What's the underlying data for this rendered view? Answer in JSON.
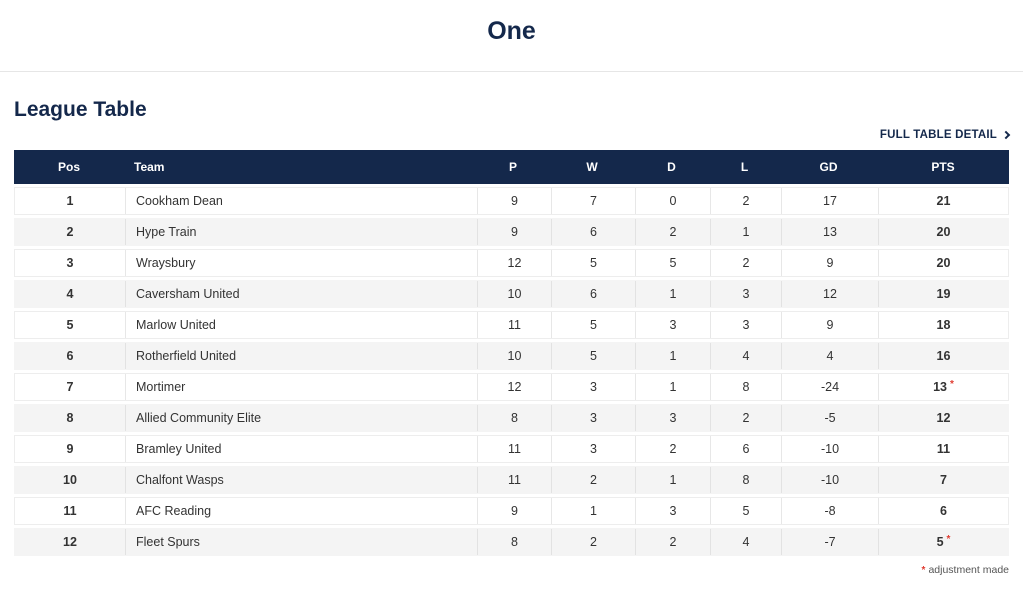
{
  "page": {
    "title": "One"
  },
  "section": {
    "heading": "League Table",
    "detail_link_label": "FULL TABLE DETAIL",
    "footnote_symbol": "*",
    "footnote_text": "adjustment made"
  },
  "colors": {
    "navy": "#14284b",
    "row_alt_bg": "#f4f4f4",
    "divider": "#e7e7e7",
    "text": "#333333",
    "adjustment_red": "#e03c31"
  },
  "table": {
    "columns": [
      {
        "key": "pos",
        "label": "Pos"
      },
      {
        "key": "team",
        "label": "Team"
      },
      {
        "key": "p",
        "label": "P"
      },
      {
        "key": "w",
        "label": "W"
      },
      {
        "key": "d",
        "label": "D"
      },
      {
        "key": "l",
        "label": "L"
      },
      {
        "key": "gd",
        "label": "GD"
      },
      {
        "key": "pts",
        "label": "PTS"
      }
    ],
    "rows": [
      {
        "pos": "1",
        "team": "Cookham Dean",
        "p": "9",
        "w": "7",
        "d": "0",
        "l": "2",
        "gd": "17",
        "pts": "21",
        "adjusted": false
      },
      {
        "pos": "2",
        "team": "Hype Train",
        "p": "9",
        "w": "6",
        "d": "2",
        "l": "1",
        "gd": "13",
        "pts": "20",
        "adjusted": false
      },
      {
        "pos": "3",
        "team": "Wraysbury",
        "p": "12",
        "w": "5",
        "d": "5",
        "l": "2",
        "gd": "9",
        "pts": "20",
        "adjusted": false
      },
      {
        "pos": "4",
        "team": "Caversham United",
        "p": "10",
        "w": "6",
        "d": "1",
        "l": "3",
        "gd": "12",
        "pts": "19",
        "adjusted": false
      },
      {
        "pos": "5",
        "team": "Marlow United",
        "p": "11",
        "w": "5",
        "d": "3",
        "l": "3",
        "gd": "9",
        "pts": "18",
        "adjusted": false
      },
      {
        "pos": "6",
        "team": "Rotherfield United",
        "p": "10",
        "w": "5",
        "d": "1",
        "l": "4",
        "gd": "4",
        "pts": "16",
        "adjusted": false
      },
      {
        "pos": "7",
        "team": "Mortimer",
        "p": "12",
        "w": "3",
        "d": "1",
        "l": "8",
        "gd": "-24",
        "pts": "13",
        "adjusted": true
      },
      {
        "pos": "8",
        "team": "Allied Community Elite",
        "p": "8",
        "w": "3",
        "d": "3",
        "l": "2",
        "gd": "-5",
        "pts": "12",
        "adjusted": false
      },
      {
        "pos": "9",
        "team": "Bramley United",
        "p": "11",
        "w": "3",
        "d": "2",
        "l": "6",
        "gd": "-10",
        "pts": "11",
        "adjusted": false
      },
      {
        "pos": "10",
        "team": "Chalfont Wasps",
        "p": "11",
        "w": "2",
        "d": "1",
        "l": "8",
        "gd": "-10",
        "pts": "7",
        "adjusted": false
      },
      {
        "pos": "11",
        "team": "AFC Reading",
        "p": "9",
        "w": "1",
        "d": "3",
        "l": "5",
        "gd": "-8",
        "pts": "6",
        "adjusted": false
      },
      {
        "pos": "12",
        "team": "Fleet Spurs",
        "p": "8",
        "w": "2",
        "d": "2",
        "l": "4",
        "gd": "-7",
        "pts": "5",
        "adjusted": true
      }
    ]
  }
}
